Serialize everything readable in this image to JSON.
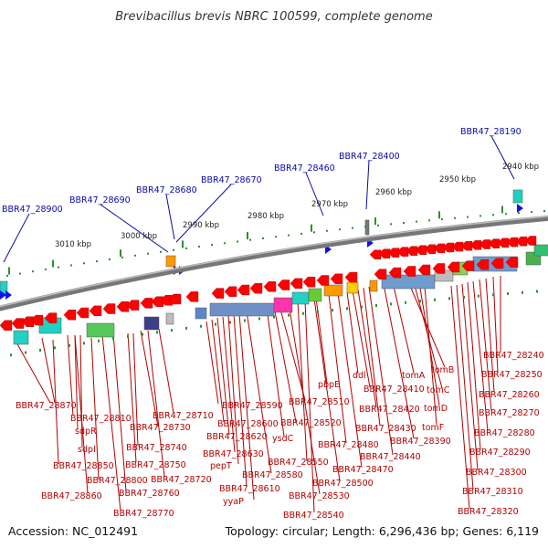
{
  "title": "Brevibacillus brevis NBRC 100599, complete genome",
  "footer": {
    "accession": "Accession: NC_012491",
    "topology": "Topology: circular; Length: 6,296,436 bp; Genes: 6,119"
  },
  "scale_labels": [
    "3010 kbp",
    "3000 kbp",
    "2990 kbp",
    "2980 kbp",
    "2970 kbp",
    "2960 kbp",
    "2950 kbp",
    "2940 kbp"
  ],
  "blue_labels": [
    "BBR47_28900",
    "BBR47_28690",
    "BBR47_28680",
    "BBR47_28670",
    "BBR47_28460",
    "BBR47_28400",
    "BBR47_28190"
  ],
  "red_labels": [
    "BBR47_28870",
    "BBR47_28810",
    "sdpR",
    "sdpI",
    "BBR47_28850",
    "BBR47_28800",
    "BBR47_28860",
    "BBR47_28770",
    "BBR47_28760",
    "BBR47_28750",
    "BBR47_28740",
    "BBR47_28730",
    "BBR47_28720",
    "BBR47_28710",
    "BBR47_28590",
    "BBR47_28600",
    "BBR47_28620",
    "BBR47_28630",
    "pepT",
    "BBR47_28610",
    "yyaP",
    "BBR47_28580",
    "ysdC",
    "BBR47_28520",
    "BBR47_28510",
    "pbpE",
    "BBR47_28550",
    "BBR47_28530",
    "BBR47_28540",
    "ddl",
    "BBR47_28410",
    "BBR47_28420",
    "BBR47_28430",
    "BBR47_28480",
    "BBR47_28470",
    "BBR47_28440",
    "BBR47_28500",
    "tomA",
    "tomB",
    "tomC",
    "tomD",
    "tomF",
    "BBR47_28390",
    "BBR47_28240",
    "BBR47_28250",
    "BBR47_28260",
    "BBR47_28270",
    "BBR47_28280",
    "BBR47_28290",
    "BBR47_28300",
    "BBR47_28310",
    "BBR47_28320"
  ],
  "colors": {
    "blue_label": "#0a0aa6",
    "red_label": "#b30000",
    "forward_gene": "#ff0000",
    "reverse_gene": "#1111ee",
    "backbone": "#777777",
    "tick": "#2f8f2f"
  }
}
